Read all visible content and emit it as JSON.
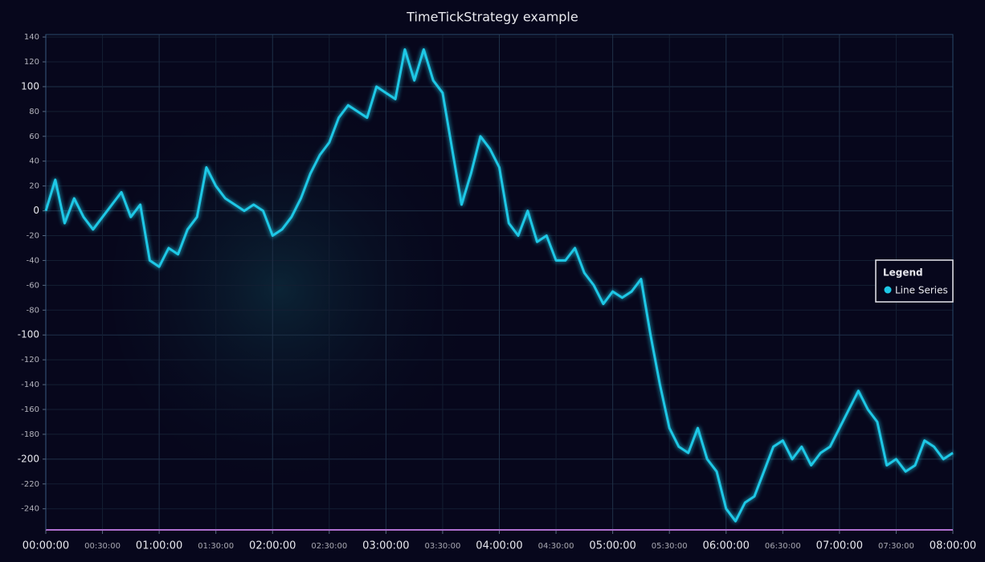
{
  "chart_data": {
    "type": "line",
    "title": "TimeTickStrategy example",
    "x": [
      0,
      300,
      600,
      900,
      1200,
      1500,
      1800,
      2100,
      2400,
      2700,
      3000,
      3300,
      3600,
      3900,
      4200,
      4500,
      4800,
      5100,
      5400,
      5700,
      6000,
      6300,
      6600,
      6900,
      7200,
      7500,
      7800,
      8100,
      8400,
      8700,
      9000,
      9300,
      9600,
      9900,
      10200,
      10500,
      10800,
      11100,
      11400,
      11700,
      12000,
      12300,
      12600,
      12900,
      13200,
      13500,
      13800,
      14100,
      14400,
      14700,
      15000,
      15300,
      15600,
      15900,
      16200,
      16500,
      16800,
      17100,
      17400,
      17700,
      18000,
      18300,
      18600,
      18900,
      19200,
      19500,
      19800,
      20100,
      20400,
      20700,
      21000,
      21300,
      21600,
      21900,
      22200,
      22500,
      22800,
      23100,
      23400,
      23700,
      24000,
      24300,
      24600,
      24900,
      25200,
      25500,
      25800,
      26100,
      26400,
      26700,
      27000,
      27300,
      27600,
      27900,
      28200,
      28500,
      28800
    ],
    "series": [
      {
        "name": "Line Series",
        "color": "#1ec8e6",
        "values": [
          0,
          25,
          -10,
          10,
          -5,
          -15,
          -5,
          5,
          15,
          -5,
          5,
          -40,
          -45,
          -30,
          -35,
          -15,
          -5,
          35,
          20,
          10,
          5,
          0,
          5,
          0,
          -20,
          -15,
          -5,
          10,
          30,
          45,
          55,
          75,
          85,
          80,
          75,
          100,
          95,
          90,
          130,
          105,
          130,
          105,
          95,
          50,
          5,
          30,
          60,
          50,
          35,
          -10,
          -20,
          0,
          -25,
          -20,
          -40,
          -40,
          -30,
          -50,
          -60,
          -75,
          -65,
          -70,
          -65,
          -55,
          -100,
          -140,
          -175,
          -190,
          -195,
          -175,
          -200,
          -210,
          -240,
          -250,
          -235,
          -230,
          -210,
          -190,
          -185,
          -200,
          -190,
          -205,
          -195,
          -190,
          -175,
          -160,
          -145,
          -160,
          -170,
          -205,
          -200,
          -210,
          -205,
          -185,
          -190,
          -200,
          -195
        ]
      }
    ],
    "legend_title": "Legend",
    "legend_position": "right",
    "xlim": [
      0,
      28800
    ],
    "ylim": [
      -257,
      142
    ],
    "grid": true,
    "xticks": [
      {
        "value": 0,
        "label": "00:00:00"
      },
      {
        "value": 1800,
        "label": "00:30:00"
      },
      {
        "value": 3600,
        "label": "01:00:00"
      },
      {
        "value": 5400,
        "label": "01:30:00"
      },
      {
        "value": 7200,
        "label": "02:00:00"
      },
      {
        "value": 9000,
        "label": "02:30:00"
      },
      {
        "value": 10800,
        "label": "03:00:00"
      },
      {
        "value": 12600,
        "label": "03:30:00"
      },
      {
        "value": 14400,
        "label": "04:00:00"
      },
      {
        "value": 16200,
        "label": "04:30:00"
      },
      {
        "value": 18000,
        "label": "05:00:00"
      },
      {
        "value": 19800,
        "label": "05:30:00"
      },
      {
        "value": 21600,
        "label": "06:00:00"
      },
      {
        "value": 23400,
        "label": "06:30:00"
      },
      {
        "value": 25200,
        "label": "07:00:00"
      },
      {
        "value": 27000,
        "label": "07:30:00"
      },
      {
        "value": 28800,
        "label": "08:00:00"
      }
    ],
    "yticks": [
      -240,
      -220,
      -200,
      -180,
      -160,
      -140,
      -120,
      -100,
      -80,
      -60,
      -40,
      -20,
      0,
      20,
      40,
      60,
      80,
      100,
      120,
      140
    ]
  }
}
